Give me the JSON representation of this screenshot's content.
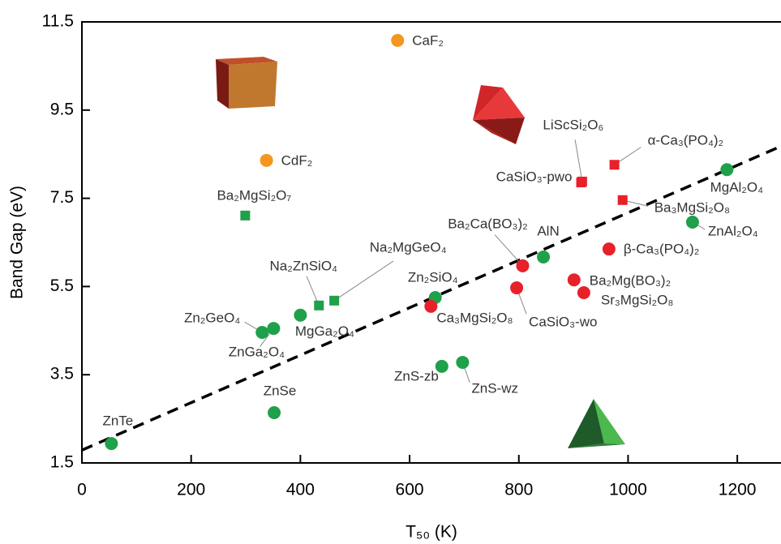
{
  "chart_data": {
    "type": "scatter",
    "x_label": "T₅₀ (K)",
    "y_label": "Band Gap (eV)",
    "xlim": [
      0,
      1280
    ],
    "ylim": [
      1.5,
      11.5
    ],
    "xticks": [
      0,
      200,
      400,
      600,
      800,
      1000,
      1200
    ],
    "yticks": [
      1.5,
      3.5,
      5.5,
      7.5,
      9.5,
      11.5
    ],
    "fit": {
      "x": [
        0,
        1280
      ],
      "y": [
        1.79,
        8.68
      ],
      "color": "#000000"
    },
    "points": [
      {
        "label": "ZnTe",
        "x": 54,
        "y": 1.94,
        "color": "#1fa04a",
        "marker": "circle"
      },
      {
        "label": "ZnSe",
        "x": 352,
        "y": 2.64,
        "color": "#1fa04a",
        "marker": "circle"
      },
      {
        "label": "ZnS-zb",
        "x": 659,
        "y": 3.69,
        "color": "#1fa04a",
        "marker": "circle"
      },
      {
        "label": "ZnS-wz",
        "x": 697,
        "y": 3.78,
        "color": "#1fa04a",
        "marker": "circle"
      },
      {
        "label": "Zn₂GeO₄",
        "x": 330,
        "y": 4.46,
        "color": "#1fa04a",
        "marker": "circle"
      },
      {
        "label": "ZnGa₂O₄",
        "x": 351,
        "y": 4.55,
        "color": "#1fa04a",
        "marker": "circle"
      },
      {
        "label": "MgGa₂O₄",
        "x": 400,
        "y": 4.85,
        "color": "#1fa04a",
        "marker": "circle"
      },
      {
        "label": "Na₂ZnSiO₄",
        "x": 434,
        "y": 5.07,
        "color": "#1fa04a",
        "marker": "square"
      },
      {
        "label": "Na₂MgGeO₄",
        "x": 462,
        "y": 5.18,
        "color": "#1fa04a",
        "marker": "square"
      },
      {
        "label": "Zn₂SiO₄",
        "x": 647,
        "y": 5.25,
        "color": "#1fa04a",
        "marker": "circle"
      },
      {
        "label": "Ca₃MgSi₂O₈",
        "x": 639,
        "y": 5.05,
        "color": "#e8202a",
        "marker": "circle"
      },
      {
        "label": "CaSiO₃-wo",
        "x": 796,
        "y": 5.47,
        "color": "#e8202a",
        "marker": "circle"
      },
      {
        "label": "Ba₂Ca(BO₃)₂",
        "x": 807,
        "y": 5.97,
        "color": "#e8202a",
        "marker": "circle"
      },
      {
        "label": "AlN",
        "x": 845,
        "y": 6.17,
        "color": "#1fa04a",
        "marker": "circle"
      },
      {
        "label": "Ba₂Mg(BO₃)₂",
        "x": 901,
        "y": 5.65,
        "color": "#e8202a",
        "marker": "circle"
      },
      {
        "label": "Sr₃MgSi₂O₈",
        "x": 919,
        "y": 5.36,
        "color": "#e8202a",
        "marker": "circle"
      },
      {
        "label": "β-Ca₃(PO₄)₂",
        "x": 965,
        "y": 6.35,
        "color": "#e8202a",
        "marker": "circle"
      },
      {
        "label": "ZnAl₂O₄",
        "x": 1118,
        "y": 6.96,
        "color": "#1fa04a",
        "marker": "circle"
      },
      {
        "label": "MgAl₂O₄",
        "x": 1181,
        "y": 8.15,
        "color": "#1fa04a",
        "marker": "circle"
      },
      {
        "label": "Ba₂MgSi₂O₇",
        "x": 299,
        "y": 7.11,
        "color": "#1fa04a",
        "marker": "square"
      },
      {
        "label": "CaSiO₃-pwo",
        "x": 914,
        "y": 7.86,
        "color": "#e8202a",
        "marker": "square"
      },
      {
        "label": "LiScSi₂O₆",
        "x": 916,
        "y": 7.88,
        "color": "#e8202a",
        "marker": "square"
      },
      {
        "label": "α-Ca₃(PO₄)₂",
        "x": 975,
        "y": 8.26,
        "color": "#e8202a",
        "marker": "square"
      },
      {
        "label": "Ba₃MgSi₂O₈",
        "x": 990,
        "y": 7.46,
        "color": "#e8202a",
        "marker": "square"
      },
      {
        "label": "CdF₂",
        "x": 338,
        "y": 8.36,
        "color": "#f5961e",
        "marker": "circle"
      },
      {
        "label": "CaF₂",
        "x": 578,
        "y": 11.08,
        "color": "#f5961e",
        "marker": "circle"
      }
    ]
  }
}
